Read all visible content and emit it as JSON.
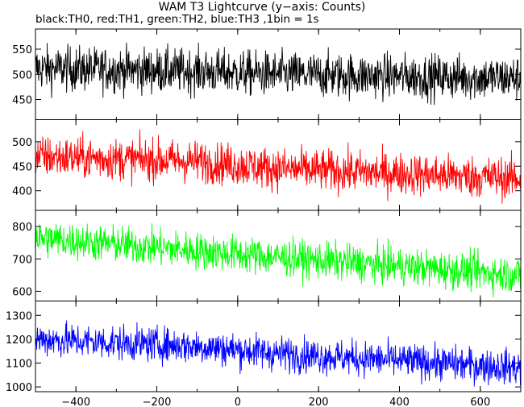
{
  "title": "WAM T3 Lightcurve (y−axis: Counts)",
  "subtitle": "black:TH0, red:TH1, green:TH2, blue:TH3 ,1bin = 1s",
  "chart_data": {
    "type": "line",
    "xlabel": "",
    "ylabel": "",
    "grid": false,
    "xlim": [
      -500,
      700
    ],
    "xticks": [
      -400,
      -200,
      0,
      200,
      400,
      600
    ],
    "xtick_labels": [
      "−400",
      "−200",
      "0",
      "200",
      "400",
      "600"
    ],
    "bin_seconds": 1,
    "panels": [
      {
        "name": "TH0",
        "color": "#000000",
        "ylim": [
          410,
          590
        ],
        "yticks": [
          450,
          500,
          550
        ],
        "ytick_labels": [
          "450",
          "500",
          "550"
        ],
        "trend": {
          "x": [
            -500,
            -100,
            100,
            700
          ],
          "y": [
            512,
            506,
            500,
            492
          ]
        },
        "noise_sd": 22
      },
      {
        "name": "TH1",
        "color": "#ff0000",
        "ylim": [
          360,
          545
        ],
        "yticks": [
          400,
          450,
          500
        ],
        "ytick_labels": [
          "400",
          "450",
          "500"
        ],
        "trend": {
          "x": [
            -500,
            -100,
            100,
            700
          ],
          "y": [
            470,
            460,
            445,
            425
          ]
        },
        "noise_sd": 21
      },
      {
        "name": "TH2",
        "color": "#00ff00",
        "ylim": [
          570,
          850
        ],
        "yticks": [
          600,
          700,
          800
        ],
        "ytick_labels": [
          "600",
          "700",
          "800"
        ],
        "trend": {
          "x": [
            -500,
            -100,
            100,
            700
          ],
          "y": [
            765,
            725,
            705,
            650
          ]
        },
        "noise_sd": 28
      },
      {
        "name": "TH3",
        "color": "#0000ff",
        "ylim": [
          980,
          1360
        ],
        "yticks": [
          1000,
          1100,
          1200,
          1300
        ],
        "ytick_labels": [
          "1000",
          "1100",
          "1200",
          "1300"
        ],
        "trend": {
          "x": [
            -500,
            -100,
            100,
            700
          ],
          "y": [
            1200,
            1170,
            1140,
            1080
          ]
        },
        "noise_sd": 36
      }
    ]
  }
}
